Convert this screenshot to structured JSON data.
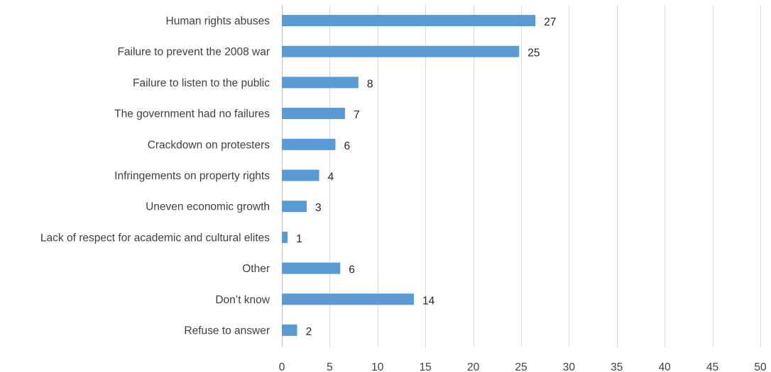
{
  "chart_data": {
    "type": "bar",
    "orientation": "horizontal",
    "categories": [
      "Human rights abuses",
      "Failure to prevent the 2008 war",
      "Failure to listen to the public",
      "The government had no failures",
      "Crackdown on protesters",
      "Infringements on property rights",
      "Uneven economic growth",
      "Lack of respect for academic and cultural elites",
      "Other",
      "Don’t know",
      "Refuse to answer"
    ],
    "values": [
      26.5,
      24.8,
      8.0,
      6.6,
      5.6,
      3.9,
      2.6,
      0.6,
      6.1,
      13.8,
      1.6
    ],
    "value_labels": [
      "27",
      "25",
      "8",
      "7",
      "6",
      "4",
      "3",
      "1",
      "6",
      "14",
      "2"
    ],
    "xlim": [
      0,
      50
    ],
    "x_ticks": [
      0,
      5,
      10,
      15,
      20,
      25,
      30,
      35,
      40,
      45,
      50
    ],
    "x_tick_labels": [
      "0",
      "5",
      "10",
      "15",
      "20",
      "25",
      "30",
      "35",
      "40",
      "45",
      "50"
    ],
    "title": "",
    "xlabel": "",
    "ylabel": "",
    "grid": true,
    "grid_axis": "x",
    "legend": "none",
    "bar_color": "#5b9bd5",
    "grid_color": "#d9d9d9",
    "label_color": "#404040"
  }
}
